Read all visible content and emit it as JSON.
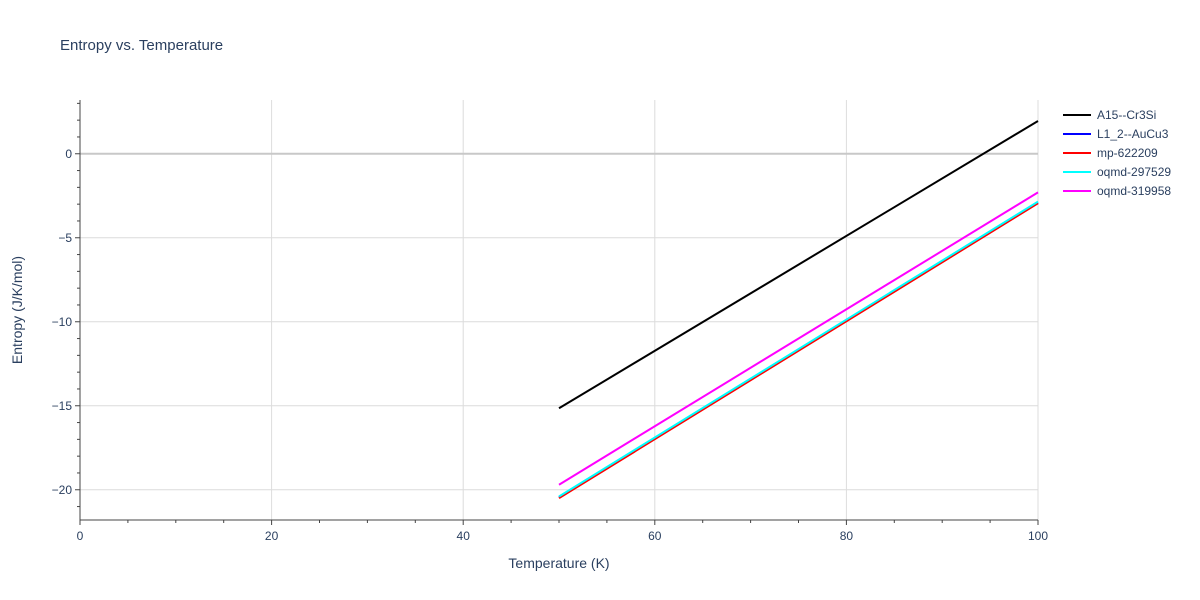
{
  "chart_data": {
    "type": "line",
    "title": "Entropy vs. Temperature",
    "xlabel": "Temperature (K)",
    "ylabel": "Entropy (J/K/mol)",
    "xlim": [
      0,
      100
    ],
    "ylim": [
      -21.8,
      3.2
    ],
    "x_ticks": [
      0,
      20,
      40,
      60,
      80,
      100
    ],
    "y_ticks": [
      -20,
      -15,
      -10,
      -5,
      0
    ],
    "grid": true,
    "legend_position": "top-right",
    "series": [
      {
        "name": "A15--Cr3Si",
        "color": "#000000",
        "x": [
          50,
          100
        ],
        "y": [
          -15.15,
          1.95
        ]
      },
      {
        "name": "L1_2--AuCu3",
        "color": "#0000ff",
        "x": [
          50,
          100
        ],
        "y": [
          -20.45,
          -2.9
        ]
      },
      {
        "name": "mp-622209",
        "color": "#ff0000",
        "x": [
          50,
          100
        ],
        "y": [
          -20.5,
          -2.95
        ]
      },
      {
        "name": "oqmd-297529",
        "color": "#00ffff",
        "x": [
          50,
          100
        ],
        "y": [
          -20.4,
          -2.85
        ]
      },
      {
        "name": "oqmd-319958",
        "color": "#ff00ff",
        "x": [
          50,
          100
        ],
        "y": [
          -19.7,
          -2.3
        ]
      }
    ]
  }
}
